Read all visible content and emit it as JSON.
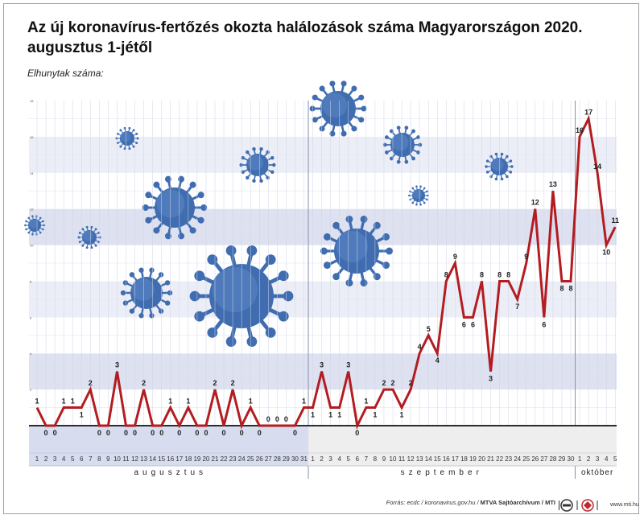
{
  "title": "Az új koronavírus-fertőzés okozta halálozások száma Magyarországon 2020. augusztus 1-jétől",
  "chart_data": {
    "type": "line",
    "title": "Az új koronavírus-fertőzés okozta halálozások száma Magyarországon 2020. augusztus 1-jétől",
    "ylabel": "Elhunytak száma:",
    "ylim": [
      0,
      18
    ],
    "yticks": [
      0,
      2,
      4,
      6,
      8,
      10,
      12,
      14,
      16,
      18
    ],
    "months": [
      {
        "label": "augusztus",
        "days": [
          1,
          2,
          3,
          4,
          5,
          6,
          7,
          8,
          9,
          10,
          11,
          12,
          13,
          14,
          15,
          16,
          17,
          18,
          19,
          20,
          21,
          22,
          23,
          24,
          25,
          26,
          27,
          28,
          29,
          30,
          31
        ]
      },
      {
        "label": "szeptember",
        "days": [
          1,
          2,
          3,
          4,
          5,
          6,
          7,
          8,
          9,
          10,
          11,
          12,
          13,
          14,
          15,
          16,
          17,
          18,
          19,
          20,
          21,
          22,
          23,
          24,
          25,
          26,
          27,
          28,
          29,
          30
        ]
      },
      {
        "label": "október",
        "days": [
          1,
          2,
          3,
          4,
          5
        ]
      }
    ],
    "values": [
      1,
      0,
      0,
      1,
      1,
      1,
      2,
      0,
      0,
      3,
      0,
      0,
      2,
      0,
      0,
      1,
      0,
      1,
      0,
      0,
      2,
      0,
      2,
      0,
      1,
      0,
      0,
      0,
      0,
      0,
      1,
      1,
      3,
      1,
      1,
      3,
      0,
      1,
      1,
      2,
      2,
      1,
      2,
      4,
      5,
      4,
      8,
      9,
      6,
      6,
      8,
      3,
      8,
      8,
      7,
      9,
      12,
      6,
      13,
      8,
      8,
      16,
      17,
      14,
      10,
      11
    ],
    "line_color": "#b31c20",
    "grid": true
  },
  "footer": {
    "source": "Forrás: ecdc / koronavirus.gov.hu / ",
    "archive": "MTVA Sajtóarchívum / MTI",
    "site": "www.mti.hu"
  },
  "colors": {
    "band_dark": "#dde1f0",
    "band_light": "#eceef7",
    "band_white": "#ffffff",
    "aug_axis": "#d8dcef",
    "sep_axis": "#eeeeee",
    "virus": "#3f6db0"
  },
  "icons": [
    "coronavirus-icon",
    "mtva-logo",
    "mti-logo"
  ]
}
